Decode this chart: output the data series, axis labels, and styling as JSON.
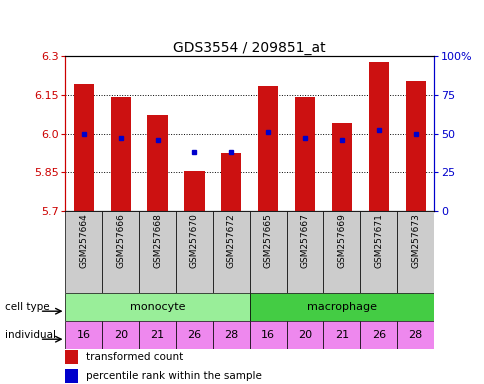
{
  "title": "GDS3554 / 209851_at",
  "samples": [
    "GSM257664",
    "GSM257666",
    "GSM257668",
    "GSM257670",
    "GSM257672",
    "GSM257665",
    "GSM257667",
    "GSM257669",
    "GSM257671",
    "GSM257673"
  ],
  "bar_values": [
    6.19,
    6.14,
    6.07,
    5.855,
    5.925,
    6.185,
    6.14,
    6.04,
    6.275,
    6.205
  ],
  "percentile_values": [
    50,
    47,
    46,
    38,
    38,
    51,
    47,
    46,
    52,
    50
  ],
  "ymin": 5.7,
  "ymax": 6.3,
  "yticks": [
    5.7,
    5.85,
    6.0,
    6.15,
    6.3
  ],
  "right_yticks": [
    0,
    25,
    50,
    75,
    100
  ],
  "cell_types": [
    "monocyte",
    "monocyte",
    "monocyte",
    "monocyte",
    "monocyte",
    "macrophage",
    "macrophage",
    "macrophage",
    "macrophage",
    "macrophage"
  ],
  "individuals": [
    16,
    20,
    21,
    26,
    28,
    16,
    20,
    21,
    26,
    28
  ],
  "bar_color": "#cc1111",
  "dot_color": "#0000cc",
  "monocyte_color": "#99ee99",
  "macrophage_color": "#44cc44",
  "individual_color": "#ee88ee",
  "tick_bg_color": "#cccccc",
  "title_fontsize": 10,
  "axis_label_color_left": "#cc0000",
  "axis_label_color_right": "#0000cc"
}
